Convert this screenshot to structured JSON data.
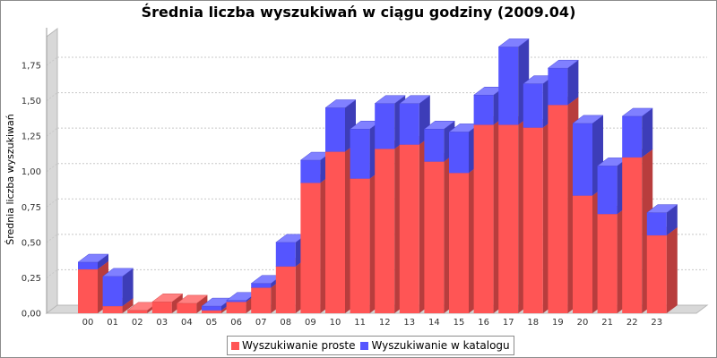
{
  "chart_data": {
    "type": "bar",
    "stacked": true,
    "title": "Średnia liczba wyszukiwań w ciągu godziny (2009.04)",
    "xlabel": "",
    "ylabel": "Średnia liczba wyszukiwań",
    "ylim": [
      0,
      2.0
    ],
    "yticks": [
      "0,00",
      "0,25",
      "0,50",
      "0,75",
      "1,00",
      "1,25",
      "1,50",
      "1,75"
    ],
    "ytick_values": [
      0,
      0.25,
      0.5,
      0.75,
      1.0,
      1.25,
      1.5,
      1.75
    ],
    "grid": true,
    "legend_position": "bottom",
    "categories": [
      "00",
      "01",
      "02",
      "03",
      "04",
      "05",
      "06",
      "07",
      "08",
      "09",
      "10",
      "11",
      "12",
      "13",
      "14",
      "15",
      "16",
      "17",
      "18",
      "19",
      "20",
      "21",
      "22",
      "23"
    ],
    "series": [
      {
        "name": "Wyszukiwanie proste",
        "color": "#ff5555",
        "values": [
          0.31,
          0.05,
          0.02,
          0.08,
          0.07,
          0.02,
          0.08,
          0.18,
          0.33,
          0.92,
          1.14,
          0.95,
          1.16,
          1.19,
          1.07,
          0.99,
          1.33,
          1.33,
          1.31,
          1.47,
          0.83,
          0.7,
          1.1,
          0.55
        ]
      },
      {
        "name": "Wyszukiwanie w katalogu",
        "color": "#5555ff",
        "values": [
          0.05,
          0.21,
          0.0,
          0.0,
          0.0,
          0.03,
          0.01,
          0.03,
          0.17,
          0.16,
          0.31,
          0.35,
          0.32,
          0.29,
          0.23,
          0.29,
          0.21,
          0.55,
          0.31,
          0.26,
          0.51,
          0.34,
          0.29,
          0.16
        ]
      }
    ]
  }
}
